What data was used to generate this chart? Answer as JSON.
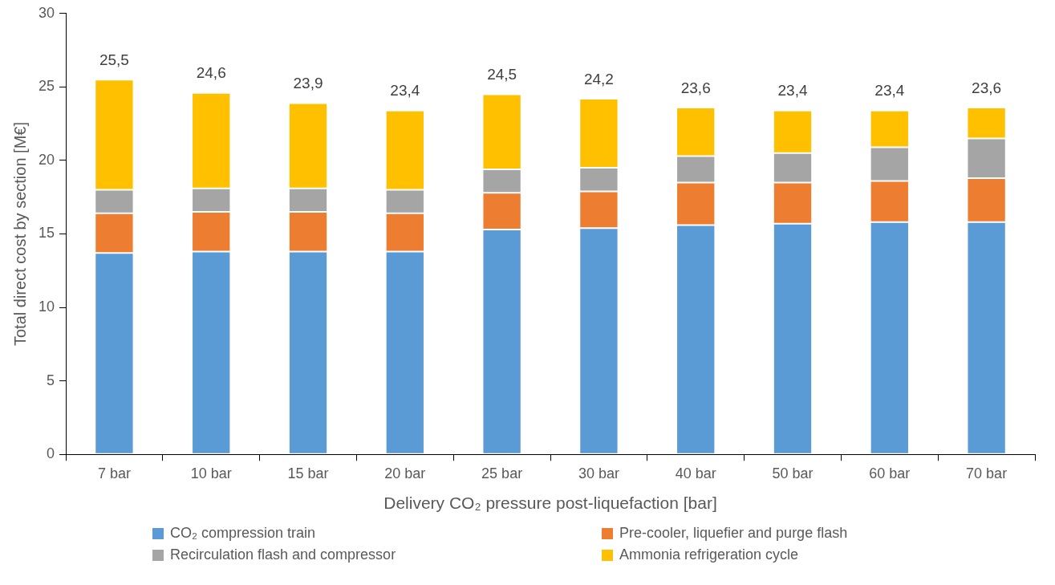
{
  "chart_data": {
    "type": "bar",
    "stacked": true,
    "xlabel": "Delivery CO₂ pressure post-liquefaction [bar]",
    "ylabel": "Total direct cost by section [M€]",
    "categories": [
      "7 bar",
      "10 bar",
      "15 bar",
      "20 bar",
      "25 bar",
      "30 bar",
      "40 bar",
      "50 bar",
      "60 bar",
      "70 bar"
    ],
    "series": [
      {
        "name": "CO₂ compression train",
        "color": "#5b9bd5",
        "values": [
          13.7,
          13.8,
          13.8,
          13.8,
          15.3,
          15.4,
          15.6,
          15.7,
          15.8,
          15.8
        ]
      },
      {
        "name": "Pre-cooler, liquefier and purge flash",
        "color": "#ed7d31",
        "values": [
          2.7,
          2.7,
          2.7,
          2.6,
          2.5,
          2.5,
          2.9,
          2.8,
          2.8,
          3.0
        ]
      },
      {
        "name": "Recirculation flash and compressor",
        "color": "#a5a5a5",
        "values": [
          1.6,
          1.6,
          1.6,
          1.6,
          1.6,
          1.6,
          1.8,
          2.0,
          2.3,
          2.7
        ]
      },
      {
        "name": "Ammonia refrigeration cycle",
        "color": "#ffc000",
        "values": [
          7.5,
          6.5,
          5.8,
          5.4,
          5.1,
          4.7,
          3.3,
          2.9,
          2.5,
          2.1
        ]
      }
    ],
    "totals": [
      "25,5",
      "24,6",
      "23,9",
      "23,4",
      "24,5",
      "24,2",
      "23,6",
      "23,4",
      "23,4",
      "23,6"
    ],
    "ylim": [
      0,
      30
    ],
    "yticks": [
      0,
      5,
      10,
      15,
      20,
      25,
      30
    ],
    "grid": false,
    "legend": "bottom"
  }
}
